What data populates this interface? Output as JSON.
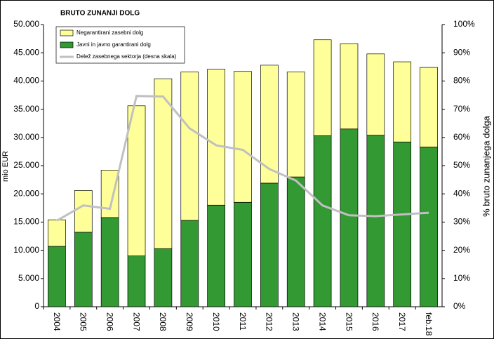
{
  "chart_data": {
    "type": "stacked_bar_line",
    "title": "BRUTO ZUNANJI DOLG",
    "y_label": "mio EUR",
    "y2_label": "% bruto zunanjega dolga",
    "categories": [
      "2004",
      "2005",
      "2006",
      "2007",
      "2008",
      "2009",
      "2010",
      "2011",
      "2012",
      "2013",
      "2014",
      "2015",
      "2016",
      "2017",
      "feb.18"
    ],
    "series": [
      {
        "name": "Negarantirani zasebni dolg",
        "color": "#ffff99",
        "kind": "bar",
        "values": [
          4700,
          7400,
          8400,
          26600,
          30100,
          26300,
          24100,
          23200,
          20900,
          18600,
          17000,
          15100,
          14400,
          14200,
          14100
        ]
      },
      {
        "name": "Javni in javno garantirani dolg",
        "color": "#339933",
        "kind": "bar",
        "values": [
          10700,
          13200,
          15800,
          9000,
          10300,
          15300,
          18000,
          18500,
          21900,
          23000,
          30300,
          31500,
          30400,
          29200,
          28300
        ]
      },
      {
        "name": "Delež zasebnega sektorja (desna skala)",
        "color": "#c0c0c0",
        "kind": "line",
        "axis": "y2",
        "values": [
          30.5,
          35.9,
          34.7,
          74.7,
          74.5,
          63.2,
          57.2,
          55.6,
          48.8,
          44.7,
          35.9,
          32.4,
          32.1,
          32.7,
          33.3
        ]
      }
    ],
    "ylim": [
      0,
      50000
    ],
    "yticks": [
      0,
      {
        "value": 5000,
        "label": "5.000"
      },
      {
        "value": 10000,
        "label": "10.000"
      },
      {
        "value": 15000,
        "label": "15.000"
      },
      {
        "value": 20000,
        "label": "20.000"
      },
      {
        "value": 25000,
        "label": "25.000"
      },
      {
        "value": 30000,
        "label": "30.000"
      },
      {
        "value": 35000,
        "label": "35.000"
      },
      {
        "value": 40000,
        "label": "40.000"
      },
      {
        "value": 45000,
        "label": "45.000"
      },
      {
        "value": 50000,
        "label": "50.000"
      }
    ],
    "y2lim": [
      0,
      100
    ],
    "y2ticks": [
      {
        "value": 0,
        "label": "0%"
      },
      {
        "value": 10,
        "label": "10%"
      },
      {
        "value": 20,
        "label": "20%"
      },
      {
        "value": 30,
        "label": "30%"
      },
      {
        "value": 40,
        "label": "40%"
      },
      {
        "value": 50,
        "label": "50%"
      },
      {
        "value": 60,
        "label": "60%"
      },
      {
        "value": 70,
        "label": "70%"
      },
      {
        "value": 80,
        "label": "80%"
      },
      {
        "value": 90,
        "label": "90%"
      },
      {
        "value": 100,
        "label": "100%"
      }
    ],
    "legend": "upper left"
  }
}
